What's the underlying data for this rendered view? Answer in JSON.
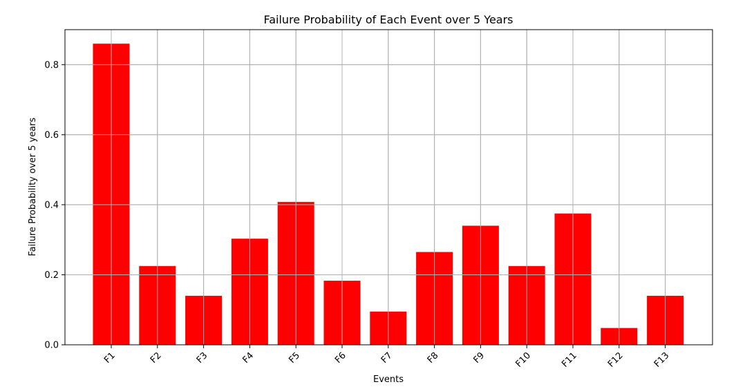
{
  "chart_data": {
    "type": "bar",
    "title": "Failure Probability of Each Event over 5 Years",
    "xlabel": "Events",
    "ylabel": "Failure Probability over 5 years",
    "categories": [
      "F1",
      "F2",
      "F3",
      "F4",
      "F5",
      "F6",
      "F7",
      "F8",
      "F9",
      "F10",
      "F11",
      "F12",
      "F13"
    ],
    "values": [
      0.86,
      0.225,
      0.14,
      0.303,
      0.408,
      0.183,
      0.095,
      0.265,
      0.34,
      0.225,
      0.375,
      0.048,
      0.14
    ],
    "ylim": [
      0,
      0.9
    ],
    "yticks": [
      0.0,
      0.2,
      0.4,
      0.6,
      0.8
    ],
    "ytick_labels": [
      "0.0",
      "0.2",
      "0.4",
      "0.6",
      "0.8"
    ],
    "grid": true,
    "bar_color": "#ff0000",
    "grid_color": "#b0b0b0"
  }
}
